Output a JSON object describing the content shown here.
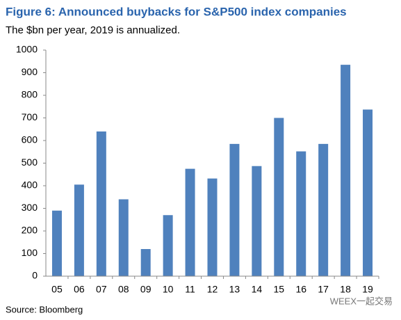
{
  "chart_data": {
    "type": "bar",
    "title": "Figure 6: Announced buybacks for S&P500 index companies",
    "subtitle": "The $bn per year, 2019 is annualized.",
    "source": "Source: Bloomberg",
    "watermark": "WEEX一起交易",
    "categories": [
      "05",
      "06",
      "07",
      "08",
      "09",
      "10",
      "11",
      "12",
      "13",
      "14",
      "15",
      "16",
      "17",
      "18",
      "19"
    ],
    "values": [
      290,
      405,
      640,
      340,
      120,
      270,
      475,
      432,
      585,
      487,
      700,
      552,
      585,
      935,
      737
    ],
    "color": "#4f81bd",
    "ylim": [
      0,
      1000
    ],
    "yticks": [
      0,
      100,
      200,
      300,
      400,
      500,
      600,
      700,
      800,
      900,
      1000
    ],
    "grid": false
  }
}
